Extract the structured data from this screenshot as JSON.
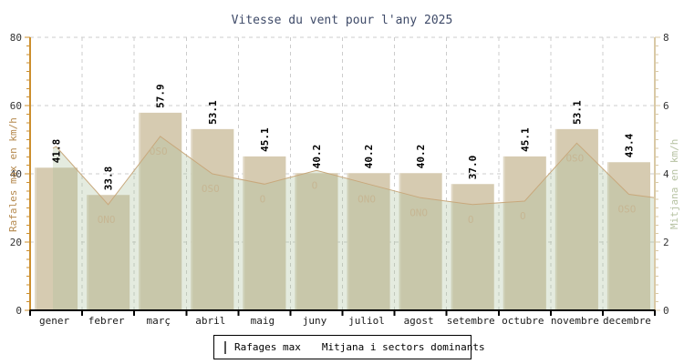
{
  "title": "Vitesse du vent pour l'any 2025",
  "y_left": {
    "label": "Rafales max en km/h",
    "ticks": [
      0,
      20,
      40,
      60,
      80
    ],
    "max": 80
  },
  "y_right": {
    "label": "Mitjana en km/h",
    "ticks": [
      0,
      2,
      4,
      6,
      8
    ],
    "max": 8
  },
  "legend": {
    "bar_label": "Rafages max",
    "line_label": "Mitjana i sectors dominants"
  },
  "colors": {
    "title_text": "#3e4a68",
    "axis_left": "#cc8f2e",
    "axis_left_text": "#b5894e",
    "axis_right": "#d9c9a6",
    "axis_right_text": "#b6c2a2",
    "axis_bottom": "#000000",
    "grid": "#cccccc",
    "bar_fill": "#d6cbb1",
    "bar_highlight": "rgba(255,255,255,0.28)",
    "area_fill": "rgba(170,192,154,0.32)",
    "line_stroke": "#c8a87c",
    "sector_text": "#c6b693",
    "tick_text": "#333333",
    "month_text": "#1a1a1a",
    "value_text": "#000000"
  },
  "chart_data": {
    "type": "bar",
    "title": "Vitesse du vent pour l'any 2025",
    "categories": [
      "gener",
      "febrer",
      "març",
      "abril",
      "maig",
      "juny",
      "juliol",
      "agost",
      "setembre",
      "octubre",
      "novembre",
      "decembre"
    ],
    "series": [
      {
        "name": "Rafages max",
        "type": "bar",
        "axis": "left",
        "values": [
          41.8,
          33.8,
          57.9,
          53.1,
          45.1,
          40.2,
          40.2,
          40.2,
          37.0,
          45.1,
          53.1,
          43.4
        ]
      },
      {
        "name": "Mitjana",
        "type": "area-line",
        "axis": "right",
        "values": [
          4.8,
          3.1,
          5.1,
          4.0,
          3.7,
          4.1,
          3.7,
          3.3,
          3.1,
          3.2,
          4.9,
          3.4
        ],
        "edge_start_value": 4.75,
        "edge_end_value": 3.3
      },
      {
        "name": "Sectors dominants",
        "type": "text-labels",
        "values": [
          "",
          "ONO",
          "OSO",
          "OSO",
          "O",
          "O",
          "ONO",
          "ONO",
          "O",
          "O",
          "OSO",
          "OSO"
        ]
      }
    ],
    "ylim_left": [
      0,
      80
    ],
    "ylim_right": [
      0,
      8
    ],
    "grid": "dashed",
    "legend_position": "bottom"
  }
}
